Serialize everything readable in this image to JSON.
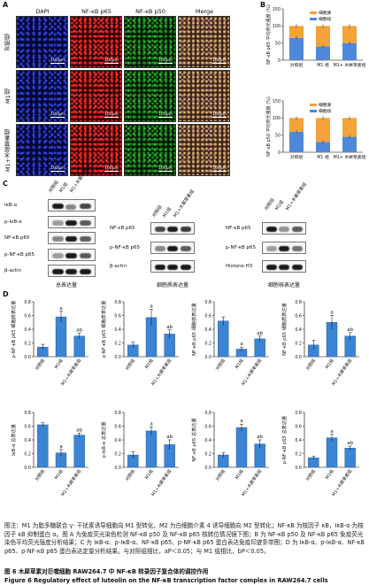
{
  "panelA": {
    "label": "A",
    "channels": [
      "DAPI",
      "NF-κB p65",
      "NF-κB p50",
      "Merge"
    ],
    "rows": [
      "对照组",
      "M1组",
      "M1+木犀草素组"
    ],
    "scale": "100μm"
  },
  "panelB": {
    "label": "B",
    "legend": [
      "细胞质",
      "细胞核"
    ],
    "colors": {
      "cytoplasm": "#f4a23a",
      "nucleus": "#4f88d8"
    },
    "chart_data": [
      {
        "type": "bar",
        "stacked": true,
        "ylabel": "NF-κB p65 平均荧光强度 (%)",
        "ylim": [
          0,
          150
        ],
        "yticks": [
          0,
          50,
          100,
          150
        ],
        "categories": [
          "对照组",
          "M1 组",
          "M1+ 木犀草素组"
        ],
        "series": [
          {
            "name": "细胞核",
            "values": [
              65,
              40,
              50
            ]
          },
          {
            "name": "细胞质",
            "values": [
              35,
              60,
              50
            ]
          }
        ]
      },
      {
        "type": "bar",
        "stacked": true,
        "ylabel": "NF-κB p50 平均荧光强度 (%)",
        "ylim": [
          0,
          150
        ],
        "yticks": [
          0,
          50,
          100,
          150
        ],
        "categories": [
          "对照组",
          "M1 组",
          "M1+ 木犀草素组"
        ],
        "series": [
          {
            "name": "细胞核",
            "values": [
              60,
              30,
              45
            ]
          },
          {
            "name": "细胞质",
            "values": [
              40,
              70,
              55
            ]
          }
        ]
      }
    ]
  },
  "panelC": {
    "label": "C",
    "columns": [
      "对照组",
      "M1组",
      "M1+木犀草素组"
    ],
    "blot1": {
      "rows": [
        "IκB-α",
        "p-IκB-α",
        "NF-κB p65",
        "p-NF-κB p65",
        "β-actin"
      ],
      "title": "总表达量"
    },
    "blot2": {
      "rows": [
        "NF-κB p65",
        "p-NF-κB p65",
        "β-actin"
      ],
      "title": "细胞质表达量"
    },
    "blot3": {
      "rows": [
        "NF-κB p65",
        "p-NF-κB p65",
        "Histone H3"
      ],
      "title": "细胞核表达量"
    }
  },
  "panelD": {
    "label": "D",
    "bar_color": "#3c84d4",
    "chart_data": [
      {
        "type": "bar",
        "ylabel": "p-NF-κB p65 细胞核表达量",
        "ylim": [
          0,
          0.8
        ],
        "yticks": [
          "0.0",
          "0.2",
          "0.4",
          "0.6",
          "0.8"
        ],
        "categories": [
          "对照组",
          "M1组",
          "M1+木犀草素组"
        ],
        "values": [
          0.14,
          0.58,
          0.3
        ],
        "errors": [
          0.04,
          0.08,
          0.04
        ],
        "annotations": [
          "",
          "a",
          "ab"
        ]
      },
      {
        "type": "bar",
        "ylabel": "p-NF-κB p65 细胞质表达量",
        "ylim": [
          0,
          0.8
        ],
        "yticks": [
          "0.0",
          "0.2",
          "0.4",
          "0.6",
          "0.8"
        ],
        "categories": [
          "对照组",
          "M1组",
          "M1+木犀草素组"
        ],
        "values": [
          0.17,
          0.57,
          0.33
        ],
        "errors": [
          0.04,
          0.12,
          0.06
        ],
        "annotations": [
          "",
          "a",
          "ab"
        ]
      },
      {
        "type": "bar",
        "ylabel": "NF-κB p65 细胞核表达量",
        "ylim": [
          0,
          0.8
        ],
        "yticks": [
          "0.0",
          "0.2",
          "0.4",
          "0.6",
          "0.8"
        ],
        "categories": [
          "对照组",
          "M1组",
          "M1+木犀草素组"
        ],
        "values": [
          0.52,
          0.11,
          0.26
        ],
        "errors": [
          0.06,
          0.03,
          0.04
        ],
        "annotations": [
          "",
          "a",
          "ab"
        ]
      },
      {
        "type": "bar",
        "ylabel": "NF-κB p65 细胞质表达量",
        "ylim": [
          0,
          0.8
        ],
        "yticks": [
          "0.0",
          "0.2",
          "0.4",
          "0.6",
          "0.8"
        ],
        "categories": [
          "对照组",
          "M1组",
          "M1+木犀草素组"
        ],
        "values": [
          0.17,
          0.5,
          0.3
        ],
        "errors": [
          0.07,
          0.1,
          0.05
        ],
        "annotations": [
          "",
          "a",
          "ab"
        ]
      },
      {
        "type": "bar",
        "ylabel": "IκB-α 总表达量",
        "ylim": [
          0,
          0.8
        ],
        "yticks": [
          "0.0",
          "0.2",
          "0.4",
          "0.6",
          "0.8"
        ],
        "categories": [
          "对照组",
          "M1组",
          "M1+木犀草素组"
        ],
        "values": [
          0.62,
          0.21,
          0.47
        ],
        "errors": [
          0.03,
          0.05,
          0.03
        ],
        "annotations": [
          "",
          "a",
          "ab"
        ]
      },
      {
        "type": "bar",
        "ylabel": "p-IκB-α 总表达量",
        "ylim": [
          0,
          0.8
        ],
        "yticks": [
          "0.0",
          "0.2",
          "0.4",
          "0.6",
          "0.8"
        ],
        "categories": [
          "对照组",
          "M1组",
          "M1+木犀草素组"
        ],
        "values": [
          0.18,
          0.53,
          0.33
        ],
        "errors": [
          0.05,
          0.06,
          0.07
        ],
        "annotations": [
          "",
          "a",
          "ab"
        ]
      },
      {
        "type": "bar",
        "ylabel": "NF-κB p65 总表达量",
        "ylim": [
          0,
          0.8
        ],
        "yticks": [
          "0.0",
          "0.2",
          "0.4",
          "0.6",
          "0.8"
        ],
        "categories": [
          "对照组",
          "M1组",
          "M1+木犀草素组"
        ],
        "values": [
          0.18,
          0.58,
          0.34
        ],
        "errors": [
          0.03,
          0.05,
          0.06
        ],
        "annotations": [
          "",
          "a",
          "ab"
        ]
      },
      {
        "type": "bar",
        "ylabel": "p-NF-κB p65 总表达量",
        "ylim": [
          0,
          0.8
        ],
        "yticks": [
          "0.0",
          "0.2",
          "0.4",
          "0.6",
          "0.8"
        ],
        "categories": [
          "对照组",
          "M1组",
          "M1+木犀草素组"
        ],
        "values": [
          0.14,
          0.43,
          0.28
        ],
        "errors": [
          0.02,
          0.05,
          0.03
        ],
        "annotations": [
          "",
          "a",
          "ab"
        ]
      }
    ]
  },
  "caption": {
    "notes": "图注：M1 为脂多糖联合 γ- 干扰素诱导细胞向 M1 型转化，M2 为白细胞介素 4 诱导细胞向 M2 型转化；NF-κB 为核因子 κB，IκB-α 为核因子 κB 抑制蛋白 α。图 A 为免疫荧光染色检测 NF-κB p50 及 NF-κB p65 核转位情况镜下图；B 为 NF-κB p50 及 NF-κB p65 免疫荧光染色平均荧光强度分析结果；C 为 IκB-α、p-IκB-α、NF-κB p65、p-NF-κB p65 蛋白表达免疫印迹条带图；D 为 IκB-α、p-IκB-α、NF-κB p65、p-NF-κB p65 蛋白表达定量分析结果。与对照组相比，aP＜0.05；与 M1 组相比，bP＜0.05。",
    "title_cn": "图 6  木犀草素对巨噬细胞 RAW264.7 中 NF-κB 转录因子复合体的调控作用",
    "title_en": "Figure 6  Regulatory effect of luteolin on the NF-κB transcription factor complex in RAW264.7 cells"
  }
}
